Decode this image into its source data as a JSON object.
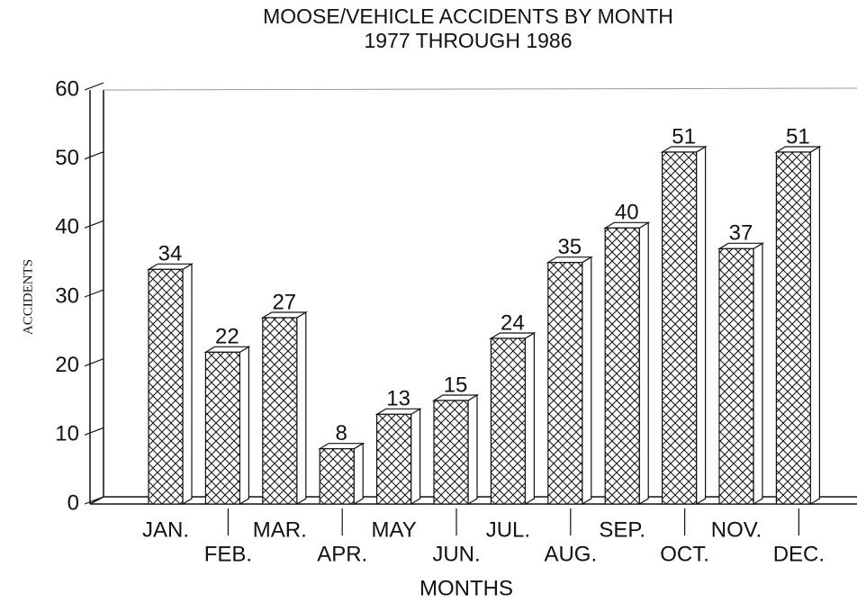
{
  "chart_data": {
    "type": "bar3d",
    "title": "MOOSE/VEHICLE ACCIDENTS BY MONTH",
    "subtitle": "1977 THROUGH 1986",
    "x_label": "MONTHS",
    "y_label": "ACCIDENTS",
    "categories": [
      "JAN.",
      "FEB.",
      "MAR.",
      "APR.",
      "MAY",
      "JUN.",
      "JUL.",
      "AUG.",
      "SEP.",
      "OCT.",
      "NOV.",
      "DEC."
    ],
    "values": [
      34,
      22,
      27,
      8,
      13,
      15,
      24,
      35,
      40,
      51,
      37,
      51
    ],
    "ylim": [
      0,
      60
    ],
    "yticks": [
      0,
      10,
      20,
      30,
      40,
      50,
      60
    ],
    "pattern": "crosshatch",
    "color": "#111111"
  }
}
